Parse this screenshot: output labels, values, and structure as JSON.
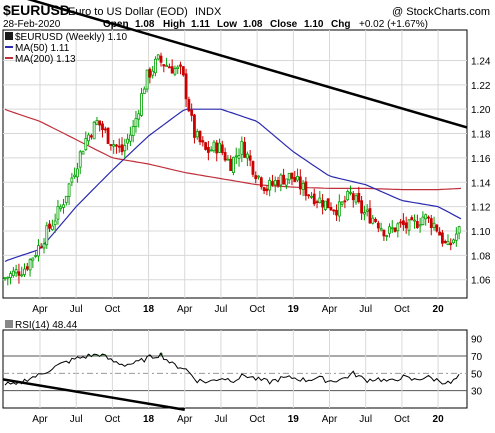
{
  "header": {
    "symbol": "$EURUSD",
    "description": "Euro to US Dollar (EOD)",
    "exchange": "INDX",
    "date": "28-Feb-2020",
    "open_label": "Open",
    "open": "1.08",
    "high_label": "High",
    "high": "1.11",
    "low_label": "Low",
    "low": "1.08",
    "close_label": "Close",
    "close": "1.10",
    "chg_label": "Chg",
    "chg": "+0.02 (+1.67%)",
    "watermark": "@ StockCharts.com"
  },
  "legend": {
    "price": "$EURUSD (Weekly) 1.10",
    "ma50": "MA(50) 1.11",
    "ma200": "MA(200) 1.13"
  },
  "colors": {
    "up": "#00a000",
    "down": "#cc0000",
    "ma50": "#2b2bb0",
    "ma200": "#c0303c",
    "trendline": "#000000",
    "rsi_line": "#000000",
    "rsi_fill": "#5a9a5a",
    "grid": "#d8d8d8"
  },
  "chart_data": [
    {
      "type": "candlestick",
      "title": "$EURUSD (Weekly) 1.10",
      "x_tick_labels": [
        "Apr",
        "Jul",
        "Oct",
        "18",
        "Apr",
        "Jul",
        "Oct",
        "19",
        "Apr",
        "Jul",
        "Oct",
        "20"
      ],
      "x_ticks": [
        "2017-04",
        "2017-07",
        "2017-10",
        "2018-01",
        "2018-04",
        "2018-07",
        "2018-10",
        "2019-01",
        "2019-04",
        "2019-07",
        "2019-10",
        "2020-01"
      ],
      "y_ticks": [
        1.06,
        1.08,
        1.1,
        1.12,
        1.14,
        1.16,
        1.18,
        1.2,
        1.22,
        1.24
      ],
      "ylim": [
        1.045,
        1.265
      ],
      "grid": true,
      "price_anchors": [
        [
          "2017-01",
          1.06
        ],
        [
          "2017-03",
          1.07
        ],
        [
          "2017-04",
          1.085
        ],
        [
          "2017-06",
          1.12
        ],
        [
          "2017-08",
          1.175
        ],
        [
          "2017-09",
          1.19
        ],
        [
          "2017-10",
          1.175
        ],
        [
          "2017-11",
          1.165
        ],
        [
          "2017-12",
          1.185
        ],
        [
          "2018-01",
          1.225
        ],
        [
          "2018-02",
          1.24
        ],
        [
          "2018-03",
          1.235
        ],
        [
          "2018-04",
          1.23
        ],
        [
          "2018-05",
          1.18
        ],
        [
          "2018-06",
          1.165
        ],
        [
          "2018-07",
          1.17
        ],
        [
          "2018-08",
          1.155
        ],
        [
          "2018-09",
          1.17
        ],
        [
          "2018-10",
          1.15
        ],
        [
          "2018-11",
          1.135
        ],
        [
          "2018-12",
          1.142
        ],
        [
          "2019-01",
          1.145
        ],
        [
          "2019-02",
          1.135
        ],
        [
          "2019-03",
          1.128
        ],
        [
          "2019-04",
          1.122
        ],
        [
          "2019-05",
          1.118
        ],
        [
          "2019-06",
          1.13
        ],
        [
          "2019-07",
          1.115
        ],
        [
          "2019-08",
          1.11
        ],
        [
          "2019-09",
          1.098
        ],
        [
          "2019-10",
          1.105
        ],
        [
          "2019-11",
          1.103
        ],
        [
          "2019-12",
          1.112
        ],
        [
          "2020-01",
          1.105
        ],
        [
          "2020-02",
          1.085
        ],
        [
          "2020-02-28",
          1.1
        ]
      ],
      "ma50": [
        [
          "2017-01",
          1.075
        ],
        [
          "2017-04",
          1.085
        ],
        [
          "2017-07",
          1.12
        ],
        [
          "2017-10",
          1.15
        ],
        [
          "2018-01",
          1.178
        ],
        [
          "2018-04",
          1.2
        ],
        [
          "2018-07",
          1.2
        ],
        [
          "2018-10",
          1.19
        ],
        [
          "2019-01",
          1.165
        ],
        [
          "2019-04",
          1.145
        ],
        [
          "2019-07",
          1.138
        ],
        [
          "2019-10",
          1.125
        ],
        [
          "2020-01",
          1.12
        ],
        [
          "2020-02-28",
          1.11
        ]
      ],
      "ma200": [
        [
          "2017-01",
          1.2
        ],
        [
          "2017-04",
          1.19
        ],
        [
          "2017-07",
          1.175
        ],
        [
          "2017-10",
          1.16
        ],
        [
          "2018-01",
          1.155
        ],
        [
          "2018-04",
          1.148
        ],
        [
          "2018-07",
          1.143
        ],
        [
          "2018-10",
          1.138
        ],
        [
          "2019-01",
          1.136
        ],
        [
          "2019-04",
          1.135
        ],
        [
          "2019-07",
          1.135
        ],
        [
          "2019-10",
          1.134
        ],
        [
          "2020-01",
          1.134
        ],
        [
          "2020-02-28",
          1.135
        ]
      ],
      "trendline": [
        [
          "2017-01",
          1.28
        ],
        [
          "2020-02-28",
          1.185
        ]
      ]
    },
    {
      "type": "line",
      "title": "RSI(14) 48.44",
      "y_ticks": [
        30,
        50,
        70,
        90
      ],
      "ylim": [
        10,
        100
      ],
      "reference_lines": [
        30,
        50,
        70
      ],
      "rsi": [
        [
          "2017-01",
          38
        ],
        [
          "2017-02",
          36
        ],
        [
          "2017-03",
          44
        ],
        [
          "2017-04",
          48
        ],
        [
          "2017-05",
          56
        ],
        [
          "2017-06",
          62
        ],
        [
          "2017-07",
          67
        ],
        [
          "2017-08",
          70
        ],
        [
          "2017-09",
          72
        ],
        [
          "2017-10",
          64
        ],
        [
          "2017-11",
          60
        ],
        [
          "2017-12",
          62
        ],
        [
          "2018-01",
          68
        ],
        [
          "2018-02",
          72
        ],
        [
          "2018-03",
          60
        ],
        [
          "2018-04",
          56
        ],
        [
          "2018-05",
          42
        ],
        [
          "2018-06",
          40
        ],
        [
          "2018-07",
          45
        ],
        [
          "2018-08",
          42
        ],
        [
          "2018-09",
          48
        ],
        [
          "2018-10",
          43
        ],
        [
          "2018-11",
          40
        ],
        [
          "2018-12",
          44
        ],
        [
          "2019-01",
          45
        ],
        [
          "2019-02",
          42
        ],
        [
          "2019-03",
          45
        ],
        [
          "2019-04",
          41
        ],
        [
          "2019-05",
          43
        ],
        [
          "2019-06",
          50
        ],
        [
          "2019-07",
          42
        ],
        [
          "2019-08",
          44
        ],
        [
          "2019-09",
          40
        ],
        [
          "2019-10",
          46
        ],
        [
          "2019-11",
          42
        ],
        [
          "2019-12",
          46
        ],
        [
          "2020-01",
          42
        ],
        [
          "2020-02",
          38
        ],
        [
          "2020-02-28",
          48
        ]
      ],
      "trendline": [
        [
          "2017-01",
          43
        ],
        [
          "2018-04",
          8
        ]
      ]
    }
  ]
}
